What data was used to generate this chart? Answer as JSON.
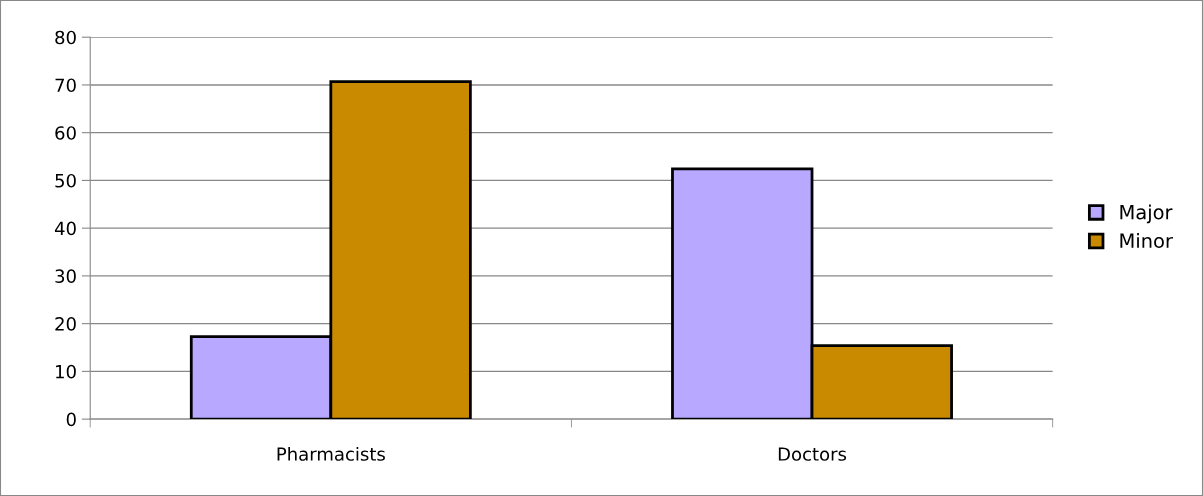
{
  "chart_data": {
    "type": "bar",
    "categories": [
      "Pharmacists",
      "Doctors"
    ],
    "series": [
      {
        "name": "Major",
        "color": "#b8a8ff",
        "values": [
          17.3,
          52.4
        ]
      },
      {
        "name": "Minor",
        "color": "#c98a00",
        "values": [
          70.7,
          15.4
        ]
      }
    ],
    "ylim": [
      0,
      80
    ],
    "yticks": [
      0,
      10,
      20,
      30,
      40,
      50,
      60,
      70,
      80
    ],
    "grid": "y",
    "legend": "right"
  }
}
